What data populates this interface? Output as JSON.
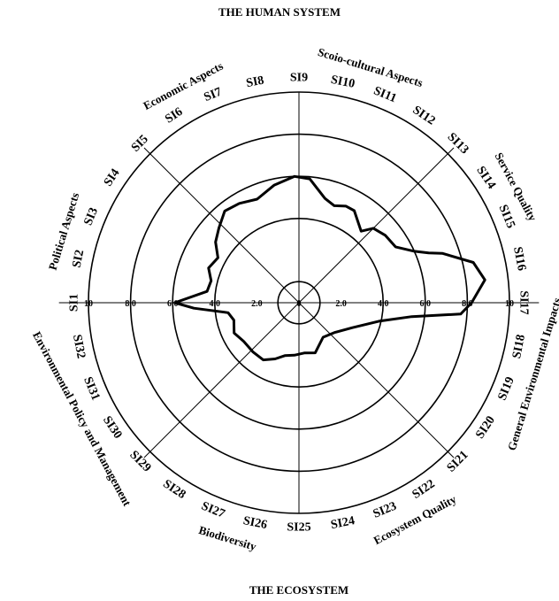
{
  "chart_data": {
    "type": "radar",
    "title": "THE HUMAN SYSTEM",
    "bottom_title": "THE ECOSYSTEM",
    "range": [
      0,
      10
    ],
    "grid_rings": [
      1,
      4,
      6,
      8,
      10
    ],
    "axis_ticks": [
      {
        "label": "10",
        "value": 10
      },
      {
        "label": "8.0",
        "value": 8
      },
      {
        "label": "6.0",
        "value": 6
      },
      {
        "label": "4.0",
        "value": 4
      },
      {
        "label": "2.0",
        "value": 2
      },
      {
        "label": "0",
        "value": 0
      },
      {
        "label": "2.0",
        "value": 2
      },
      {
        "label": "4.0",
        "value": 4
      },
      {
        "label": "6.0",
        "value": 6
      },
      {
        "label": "8.0",
        "value": 8
      },
      {
        "label": "10",
        "value": 10
      }
    ],
    "indicators": [
      "SI1",
      "SI2",
      "SI3",
      "SI4",
      "SI5",
      "SI6",
      "SI7",
      "SI8",
      "SI9",
      "SI10",
      "SI11",
      "SI12",
      "SI13",
      "SI14",
      "SI15",
      "SI16",
      "SI17",
      "SI18",
      "SI19",
      "SI20",
      "SI21",
      "SI22",
      "SI23",
      "SI24",
      "SI25",
      "SI26",
      "SI27",
      "SI28",
      "SI29",
      "SI30",
      "SI31",
      "SI32"
    ],
    "groups": [
      {
        "name": "Political Aspects",
        "indicators": [
          "SI1",
          "SI2",
          "SI3",
          "SI4"
        ]
      },
      {
        "name": "Economic Aspects",
        "indicators": [
          "SI5",
          "SI6",
          "SI7",
          "SI8"
        ]
      },
      {
        "name": "Scoio-cultural Aspects",
        "indicators": [
          "SI9",
          "SI10",
          "SI11",
          "SI12"
        ]
      },
      {
        "name": "Service Quality",
        "indicators": [
          "SI13",
          "SI14",
          "SI15",
          "SI16"
        ]
      },
      {
        "name": "General Environmental Impacts",
        "indicators": [
          "SI17",
          "SI18",
          "SI19",
          "SI20"
        ]
      },
      {
        "name": "Ecosystem Quality",
        "indicators": [
          "SI21",
          "SI22",
          "SI23",
          "SI24"
        ]
      },
      {
        "name": "Biodiversity",
        "indicators": [
          "SI25",
          "SI26",
          "SI27",
          "SI28"
        ]
      },
      {
        "name": "Environmental Policy and Management",
        "indicators": [
          "SI29",
          "SI30",
          "SI31",
          "SI32"
        ]
      }
    ],
    "series": [
      {
        "values": [
          {
            "angle": 0,
            "r": 5.9
          },
          {
            "angle": 7,
            "r": 4.4
          },
          {
            "angle": 14,
            "r": 4.3
          },
          {
            "angle": 21,
            "r": 4.6
          },
          {
            "angle": 29,
            "r": 4.4
          },
          {
            "angle": 36,
            "r": 4.9
          },
          {
            "angle": 43,
            "r": 5.2
          },
          {
            "angle": 51,
            "r": 5.6
          },
          {
            "angle": 59,
            "r": 5.5
          },
          {
            "angle": 68,
            "r": 5.3
          },
          {
            "angle": 78,
            "r": 5.7
          },
          {
            "angle": 88,
            "r": 6.0
          },
          {
            "angle": 95,
            "r": 5.9
          },
          {
            "angle": 104,
            "r": 5.1
          },
          {
            "angle": 110,
            "r": 4.9
          },
          {
            "angle": 116,
            "r": 5.1
          },
          {
            "angle": 121,
            "r": 5.1
          },
          {
            "angle": 131,
            "r": 4.5
          },
          {
            "angle": 135,
            "r": 5.0
          },
          {
            "angle": 142,
            "r": 5.2
          },
          {
            "angle": 150,
            "r": 5.3
          },
          {
            "angle": 156,
            "r": 6.0
          },
          {
            "angle": 159,
            "r": 6.6
          },
          {
            "angle": 161,
            "r": 7.2
          },
          {
            "angle": 167,
            "r": 8.5
          },
          {
            "angle": 173,
            "r": 8.9
          },
          {
            "angle": 180,
            "r": 8.2
          },
          {
            "angle": 184,
            "r": 7.7
          },
          {
            "angle": 187,
            "r": 5.4
          },
          {
            "angle": 193,
            "r": 3.9
          },
          {
            "angle": 205,
            "r": 2.8
          },
          {
            "angle": 220,
            "r": 2.2
          },
          {
            "angle": 235,
            "r": 2.0
          },
          {
            "angle": 252,
            "r": 2.5
          },
          {
            "angle": 264,
            "r": 2.4
          },
          {
            "angle": 275,
            "r": 2.5
          },
          {
            "angle": 285,
            "r": 2.6
          },
          {
            "angle": 293,
            "r": 2.9
          },
          {
            "angle": 302,
            "r": 3.2
          },
          {
            "angle": 313,
            "r": 3.2
          },
          {
            "angle": 325,
            "r": 3.2
          },
          {
            "angle": 335,
            "r": 3.4
          },
          {
            "angle": 345,
            "r": 3.2
          },
          {
            "angle": 352,
            "r": 3.4
          },
          {
            "angle": 357,
            "r": 5.0
          }
        ]
      }
    ]
  }
}
